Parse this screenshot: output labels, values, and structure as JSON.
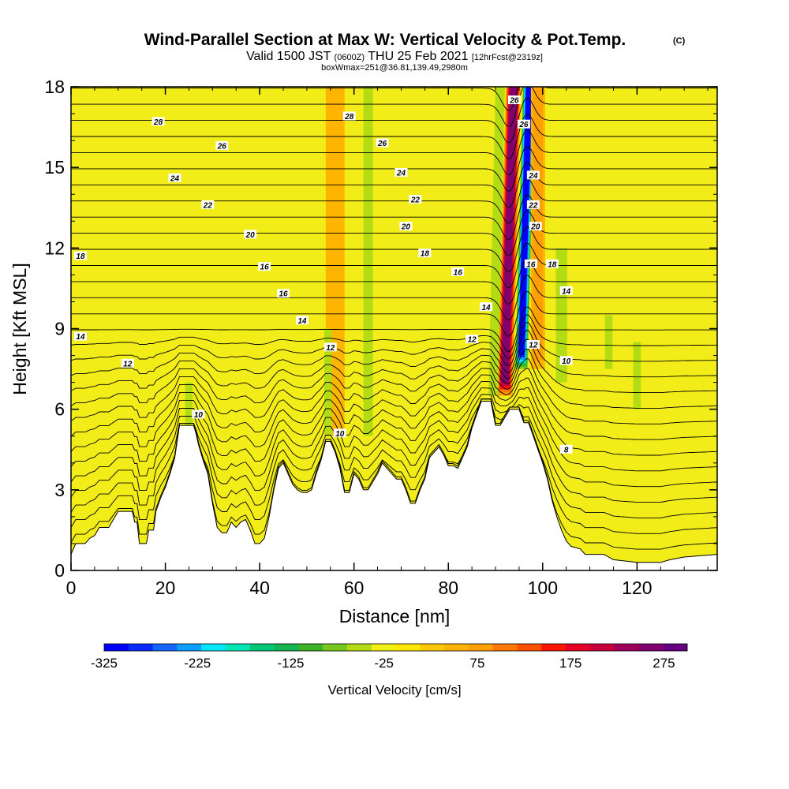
{
  "chart_data": {
    "type": "heatmap",
    "title": "Wind-Parallel Section at Max W: Vertical Velocity & Pot.Temp.",
    "title_mark": "(C)",
    "subtitle_pre": "Valid 1500 JST",
    "subtitle_utc": "(0600Z)",
    "subtitle_date": "THU 25 Feb 2021",
    "subtitle_fcst": "[12hrFcst@2319z]",
    "subtitle2": "boxWmax=251@36.81,139.49,2980m",
    "xlabel": "Distance [nm]",
    "ylabel": "Height [Kft MSL]",
    "xlim": [
      0,
      137
    ],
    "ylim": [
      0,
      18
    ],
    "xticks": [
      "0",
      "20",
      "40",
      "60",
      "80",
      "100",
      "120"
    ],
    "yticks": [
      "0",
      "3",
      "6",
      "9",
      "12",
      "15",
      "18"
    ],
    "colorbar": {
      "label": "Vertical Velocity [cm/s]",
      "range": [
        -325,
        300
      ],
      "ticks": [
        "-325",
        "-225",
        "-125",
        "-25",
        "75",
        "175",
        "275"
      ],
      "colors": [
        "#0000ff",
        "#0a2bff",
        "#1565ff",
        "#0aa0ff",
        "#00e6ff",
        "#00e6b4",
        "#00c878",
        "#14b450",
        "#3cb428",
        "#78c81e",
        "#b4dc14",
        "#f0f014",
        "#ffe600",
        "#ffc800",
        "#ffb400",
        "#ffa000",
        "#ff7800",
        "#ff5000",
        "#ff1400",
        "#e60028",
        "#c8003c",
        "#a0005a",
        "#82006e",
        "#640082"
      ]
    },
    "terrain_kft": [
      [
        0,
        0.6
      ],
      [
        1,
        1.0
      ],
      [
        3,
        1.0
      ],
      [
        4,
        1.2
      ],
      [
        5,
        1.3
      ],
      [
        6,
        1.6
      ],
      [
        8,
        1.6
      ],
      [
        9,
        1.9
      ],
      [
        10,
        2.2
      ],
      [
        13,
        2.2
      ],
      [
        13.5,
        1.8
      ],
      [
        14,
        1.8
      ],
      [
        14.5,
        1.0
      ],
      [
        16,
        1.0
      ],
      [
        16.5,
        1.5
      ],
      [
        17.5,
        1.5
      ],
      [
        18,
        2.2
      ],
      [
        19,
        2.7
      ],
      [
        20,
        3.1
      ],
      [
        21,
        3.6
      ],
      [
        22,
        4.2
      ],
      [
        22.5,
        4.8
      ],
      [
        23,
        5.4
      ],
      [
        26,
        5.4
      ],
      [
        26.5,
        5.1
      ],
      [
        27,
        4.7
      ],
      [
        28,
        4.1
      ],
      [
        29,
        3.6
      ],
      [
        30,
        2.5
      ],
      [
        31,
        1.6
      ],
      [
        32,
        1.4
      ],
      [
        33,
        1.4
      ],
      [
        34,
        1.8
      ],
      [
        35,
        1.6
      ],
      [
        36,
        1.8
      ],
      [
        37,
        1.9
      ],
      [
        38,
        1.5
      ],
      [
        39,
        1.0
      ],
      [
        40,
        1.0
      ],
      [
        41,
        1.2
      ],
      [
        42,
        2.0
      ],
      [
        43,
        3.0
      ],
      [
        44,
        3.8
      ],
      [
        45,
        4.0
      ],
      [
        46,
        3.6
      ],
      [
        47,
        3.2
      ],
      [
        48,
        3.0
      ],
      [
        49,
        2.9
      ],
      [
        50,
        2.9
      ],
      [
        51,
        3.0
      ],
      [
        52,
        3.6
      ],
      [
        53,
        4.1
      ],
      [
        54,
        4.8
      ],
      [
        55,
        4.8
      ],
      [
        56,
        4.4
      ],
      [
        57,
        3.8
      ],
      [
        58,
        2.9
      ],
      [
        59,
        2.9
      ],
      [
        60,
        3.6
      ],
      [
        61,
        3.4
      ],
      [
        62,
        3.0
      ],
      [
        63,
        3.0
      ],
      [
        64,
        3.3
      ],
      [
        65,
        3.6
      ],
      [
        66,
        4.0
      ],
      [
        67,
        3.8
      ],
      [
        68,
        3.6
      ],
      [
        69,
        3.4
      ],
      [
        70,
        3.4
      ],
      [
        71,
        3.0
      ],
      [
        72,
        2.5
      ],
      [
        73,
        2.5
      ],
      [
        74,
        3.0
      ],
      [
        75,
        3.4
      ],
      [
        76,
        4.2
      ],
      [
        77,
        4.4
      ],
      [
        78,
        4.6
      ],
      [
        79,
        4.3
      ],
      [
        80,
        3.9
      ],
      [
        81,
        3.9
      ],
      [
        82,
        3.8
      ],
      [
        83,
        4.2
      ],
      [
        84,
        4.6
      ],
      [
        85,
        5.3
      ],
      [
        86,
        5.8
      ],
      [
        87,
        6.3
      ],
      [
        89,
        6.3
      ],
      [
        90,
        5.4
      ],
      [
        91,
        5.4
      ],
      [
        92,
        5.7
      ],
      [
        93,
        6.0
      ],
      [
        95,
        6.0
      ],
      [
        96,
        5.5
      ],
      [
        97,
        5.5
      ],
      [
        98,
        5.0
      ],
      [
        99,
        4.5
      ],
      [
        100,
        4.0
      ],
      [
        101,
        3.4
      ],
      [
        102,
        2.6
      ],
      [
        103,
        2.0
      ],
      [
        104,
        1.5
      ],
      [
        105,
        1.1
      ],
      [
        106,
        0.9
      ],
      [
        108,
        0.8
      ],
      [
        109,
        0.6
      ],
      [
        113,
        0.6
      ],
      [
        115,
        0.4
      ],
      [
        120,
        0.3
      ],
      [
        125,
        0.3
      ],
      [
        127,
        0.4
      ],
      [
        130,
        0.5
      ],
      [
        137,
        0.6
      ]
    ],
    "updrafts": [
      {
        "x": 92.0,
        "y_bottom": 6.5,
        "y_top": 18.0,
        "lean": 1.8,
        "w": 251,
        "width_nm": 1.6
      },
      {
        "x": 95.5,
        "y_bottom": 7.5,
        "y_top": 18.0,
        "lean": 1.6,
        "w": -325,
        "width_nm": 1.3
      },
      {
        "x": 89.5,
        "y_bottom": 6.5,
        "y_top": 18.0,
        "lean": 1.5,
        "w": -60,
        "width_nm": 1.0
      },
      {
        "x": 99.0,
        "y_bottom": 7.5,
        "y_top": 18.0,
        "lean": 0.0,
        "w": 90,
        "width_nm": 1.5
      },
      {
        "x": 104.0,
        "y_bottom": 7.0,
        "y_top": 12.0,
        "lean": 0.0,
        "w": -60,
        "width_nm": 1.2
      },
      {
        "x": 56.0,
        "y_bottom": 5.0,
        "y_top": 18.0,
        "lean": 0.0,
        "w": 60,
        "width_nm": 2.0
      },
      {
        "x": 63.0,
        "y_bottom": 5.0,
        "y_top": 18.0,
        "lean": 0.0,
        "w": -45,
        "width_nm": 1.0
      },
      {
        "x": 54.5,
        "y_bottom": 5.0,
        "y_top": 9.0,
        "lean": 0.0,
        "w": -60,
        "width_nm": 0.8
      },
      {
        "x": 25.0,
        "y_bottom": 5.4,
        "y_top": 7.0,
        "lean": 0.0,
        "w": -55,
        "width_nm": 0.8
      },
      {
        "x": 114.0,
        "y_bottom": 7.5,
        "y_top": 9.5,
        "lean": 0.0,
        "w": -50,
        "width_nm": 0.8
      },
      {
        "x": 120.0,
        "y_bottom": 6.0,
        "y_top": 8.5,
        "lean": 0.0,
        "w": -40,
        "width_nm": 0.8
      }
    ],
    "theta_labels": [
      {
        "x": 18.5,
        "y": 16.7,
        "text": "28"
      },
      {
        "x": 59,
        "y": 16.9,
        "text": "28"
      },
      {
        "x": 32,
        "y": 15.8,
        "text": "26"
      },
      {
        "x": 66,
        "y": 15.9,
        "text": "26"
      },
      {
        "x": 22,
        "y": 14.6,
        "text": "24"
      },
      {
        "x": 70,
        "y": 14.8,
        "text": "24"
      },
      {
        "x": 29,
        "y": 13.6,
        "text": "22"
      },
      {
        "x": 73,
        "y": 13.8,
        "text": "22"
      },
      {
        "x": 38,
        "y": 12.5,
        "text": "20"
      },
      {
        "x": 71,
        "y": 12.8,
        "text": "20"
      },
      {
        "x": 2,
        "y": 11.7,
        "text": "18"
      },
      {
        "x": 75,
        "y": 11.8,
        "text": "18"
      },
      {
        "x": 41,
        "y": 11.3,
        "text": "16"
      },
      {
        "x": 82,
        "y": 11.1,
        "text": "16"
      },
      {
        "x": 45,
        "y": 10.3,
        "text": "16"
      },
      {
        "x": 49,
        "y": 9.3,
        "text": "14"
      },
      {
        "x": 2,
        "y": 8.7,
        "text": "14"
      },
      {
        "x": 12,
        "y": 7.7,
        "text": "12"
      },
      {
        "x": 55,
        "y": 8.3,
        "text": "12"
      },
      {
        "x": 85,
        "y": 8.6,
        "text": "12"
      },
      {
        "x": 27,
        "y": 5.8,
        "text": "10"
      },
      {
        "x": 57,
        "y": 5.1,
        "text": "10"
      },
      {
        "x": 88,
        "y": 9.8,
        "text": "14"
      },
      {
        "x": 94,
        "y": 17.5,
        "text": "26"
      },
      {
        "x": 96,
        "y": 16.6,
        "text": "26"
      },
      {
        "x": 98,
        "y": 14.7,
        "text": "24"
      },
      {
        "x": 98,
        "y": 13.6,
        "text": "22"
      },
      {
        "x": 98.5,
        "y": 12.8,
        "text": "20"
      },
      {
        "x": 97.5,
        "y": 11.4,
        "text": "16"
      },
      {
        "x": 102,
        "y": 11.4,
        "text": "18"
      },
      {
        "x": 105,
        "y": 10.4,
        "text": "14"
      },
      {
        "x": 98,
        "y": 8.4,
        "text": "12"
      },
      {
        "x": 105,
        "y": 7.8,
        "text": "10"
      },
      {
        "x": 105,
        "y": 4.5,
        "text": "8"
      }
    ]
  }
}
